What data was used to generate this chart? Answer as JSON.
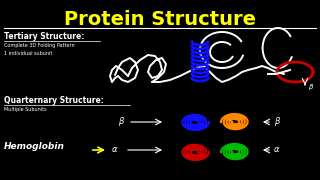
{
  "background_color": "#000000",
  "title": "Protein Structure",
  "title_color": "#FFFF00",
  "title_fontsize": 14,
  "white_color": "#FFFFFF",
  "blue_color": "#1111FF",
  "red_color": "#CC0000",
  "green_color": "#00BB00",
  "orange_color": "#FF8800",
  "yellow_color": "#FFFF00",
  "gray_color": "#888888",
  "tertiary_label": "Tertiary Structure:",
  "tertiary_sub1": "Complete 3D Folding Pattern",
  "tertiary_sub2": "1 individual subunit",
  "quaternary_label": "Quarternary Structure:",
  "quaternary_sub": "Multiple Subunits",
  "hemoglobin_label": "Hemoglobin"
}
